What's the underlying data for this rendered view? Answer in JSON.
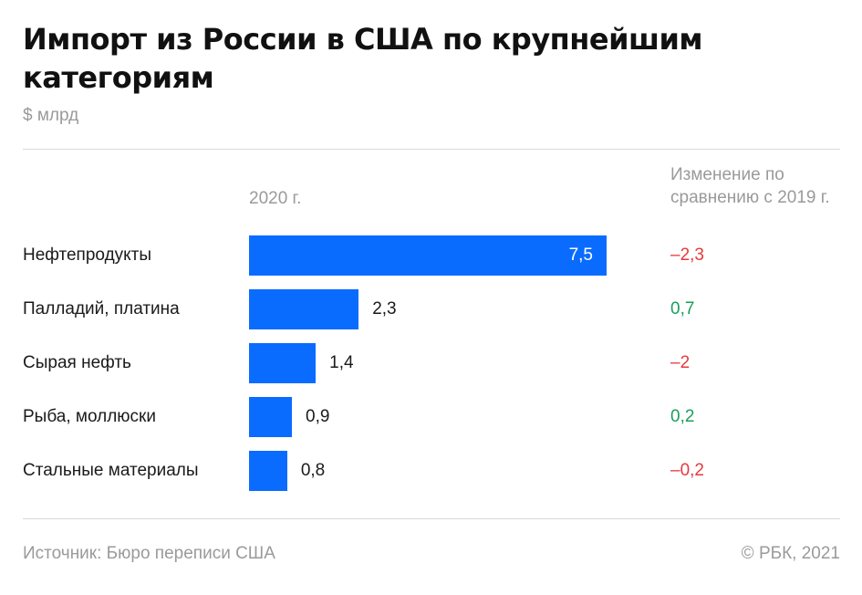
{
  "title": "Импорт из России в США по крупнейшим категориям",
  "subtitle": "$ млрд",
  "col_year": "2020 г.",
  "col_change": "Изменение по сравнению с 2019 г.",
  "chart_data": {
    "type": "bar",
    "orientation": "horizontal",
    "categories": [
      "Нефтепродукты",
      "Палладий, платина",
      "Сырая нефть",
      "Рыба, моллюски",
      "Стальные материалы"
    ],
    "values": [
      7.5,
      2.3,
      1.4,
      0.9,
      0.8
    ],
    "value_labels": [
      "7,5",
      "2,3",
      "1,4",
      "0,9",
      "0,8"
    ],
    "changes": [
      "–2,3",
      "0,7",
      "–2",
      "0,2",
      "–0,2"
    ],
    "change_signs": [
      "neg",
      "pos",
      "neg",
      "pos",
      "neg"
    ],
    "bar_color": "#0a6cff",
    "positive_color": "#1a9e5c",
    "negative_color": "#e8383d"
  },
  "footer": {
    "source": "Источник:  Бюро переписи США",
    "copyright": "©  РБК, 2021"
  }
}
